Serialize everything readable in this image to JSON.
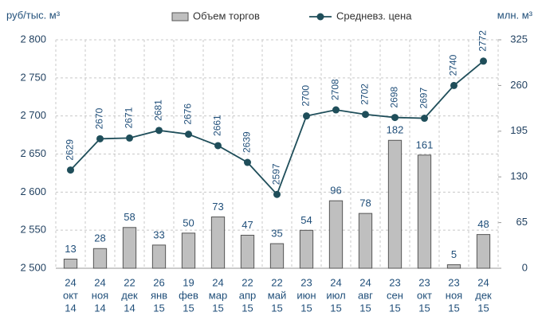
{
  "chart_data": {
    "type": "bar_line",
    "ylabel": "руб/тыс. м³",
    "y2label": "млн. м³",
    "categories": [
      [
        "24",
        "окт",
        "14"
      ],
      [
        "24",
        "ноя",
        "14"
      ],
      [
        "22",
        "дек",
        "14"
      ],
      [
        "26",
        "янв",
        "15"
      ],
      [
        "19",
        "фев",
        "15"
      ],
      [
        "24",
        "мар",
        "15"
      ],
      [
        "22",
        "апр",
        "15"
      ],
      [
        "22",
        "май",
        "15"
      ],
      [
        "23",
        "июн",
        "15"
      ],
      [
        "24",
        "июл",
        "15"
      ],
      [
        "24",
        "авг",
        "15"
      ],
      [
        "23",
        "сен",
        "15"
      ],
      [
        "23",
        "окт",
        "15"
      ],
      [
        "23",
        "ноя",
        "15"
      ],
      [
        "24",
        "дек",
        "15"
      ]
    ],
    "series": [
      {
        "name": "Объем торгов",
        "type": "bar",
        "axis": "y2",
        "color": "#bfbfbf",
        "values": [
          13,
          28,
          58,
          33,
          50,
          73,
          47,
          35,
          54,
          96,
          78,
          182,
          161,
          5,
          48
        ]
      },
      {
        "name": "Средневз. цена",
        "type": "line",
        "axis": "y",
        "color": "#1f4e5a",
        "values": [
          2629,
          2670,
          2671,
          2681,
          2676,
          2661,
          2639,
          2597,
          2700,
          2708,
          2702,
          2698,
          2697,
          2740,
          2772
        ]
      }
    ],
    "ylim": [
      2500,
      2800
    ],
    "yticks": [
      {
        "value": 2500,
        "label": "2 500"
      },
      {
        "value": 2550,
        "label": "2 550"
      },
      {
        "value": 2600,
        "label": "2 600"
      },
      {
        "value": 2650,
        "label": "2 650"
      },
      {
        "value": 2700,
        "label": "2 700"
      },
      {
        "value": 2750,
        "label": "2 750"
      },
      {
        "value": 2800,
        "label": "2 800"
      }
    ],
    "y2lim": [
      0,
      325
    ],
    "y2ticks": [
      0,
      65,
      130,
      195,
      260,
      325
    ],
    "grid": true,
    "legend": "top"
  }
}
